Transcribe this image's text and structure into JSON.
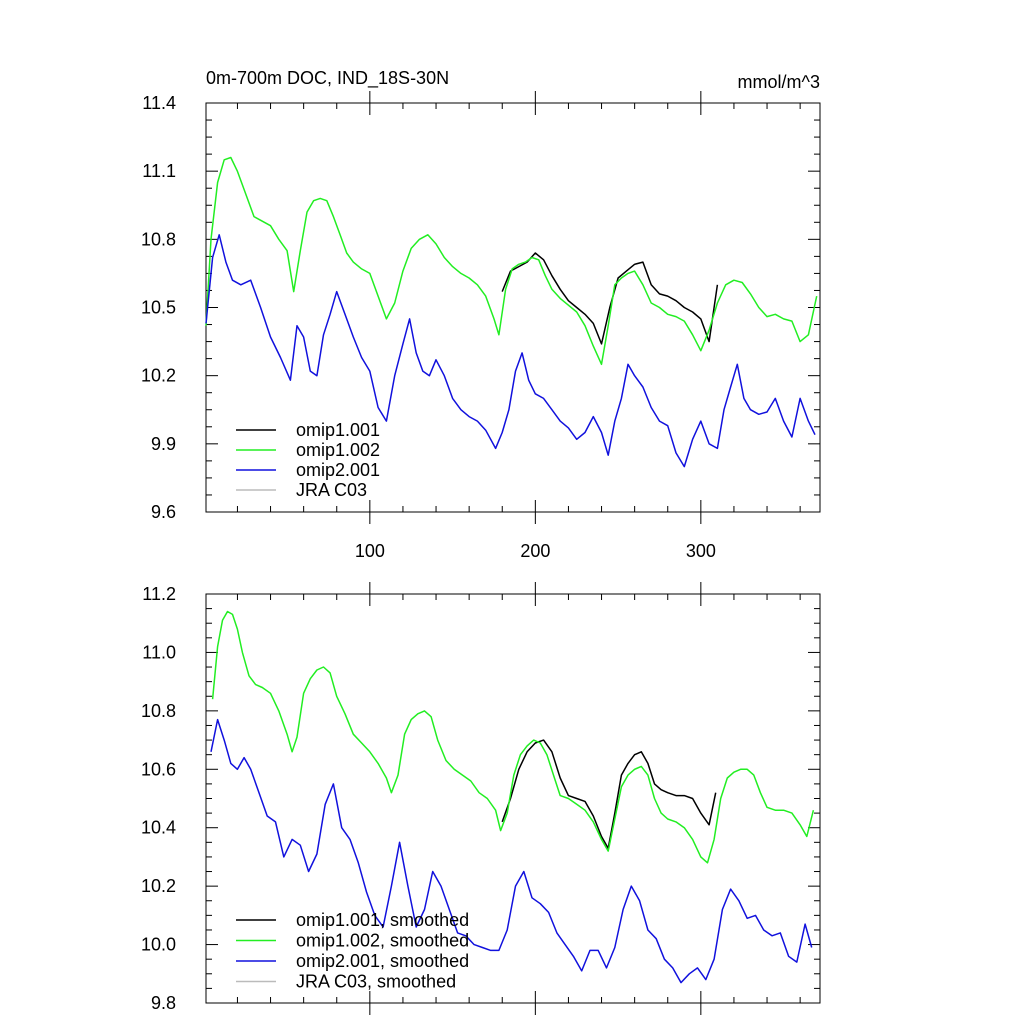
{
  "figure": {
    "title_left": "0m-700m DOC, IND_18S-30N",
    "title_right": "mmol/m^3"
  },
  "colors": {
    "omip1_001": "#000000",
    "omip1_002": "#22ee22",
    "omip2_001": "#1111dd",
    "jra_c03": "#bbbbbb"
  },
  "chart_data": [
    {
      "type": "line",
      "name": "raw",
      "xlim": [
        1,
        372
      ],
      "ylim": [
        9.6,
        11.4
      ],
      "xticks": [
        100,
        200,
        300
      ],
      "yticks": [
        9.6,
        9.9,
        10.2,
        10.5,
        10.8,
        11.1,
        11.4
      ],
      "ytick_labels": [
        "9.6",
        "9.9",
        "10.2",
        "10.5",
        "10.8",
        "11.1",
        "11.4"
      ],
      "xtick_labels": [
        "100",
        "200",
        "300"
      ],
      "legend_position": "bottom-left",
      "series": [
        {
          "name": "omip1.001",
          "color_key": "omip1_001",
          "x": [
            180,
            185,
            190,
            195,
            200,
            205,
            210,
            215,
            220,
            225,
            230,
            235,
            240,
            245,
            250,
            255,
            260,
            265,
            270,
            275,
            280,
            285,
            290,
            295,
            300,
            305,
            310
          ],
          "y": [
            10.57,
            10.66,
            10.68,
            10.7,
            10.74,
            10.71,
            10.64,
            10.58,
            10.53,
            10.5,
            10.47,
            10.43,
            10.34,
            10.5,
            10.63,
            10.66,
            10.69,
            10.7,
            10.6,
            10.56,
            10.55,
            10.53,
            10.5,
            10.48,
            10.45,
            10.35,
            10.6
          ]
        },
        {
          "name": "omip1.002",
          "color_key": "omip1_002",
          "x": [
            1,
            4,
            8,
            12,
            16,
            20,
            25,
            30,
            35,
            40,
            45,
            50,
            54,
            58,
            62,
            66,
            70,
            74,
            78,
            82,
            86,
            90,
            95,
            100,
            105,
            110,
            115,
            120,
            125,
            130,
            135,
            140,
            145,
            150,
            155,
            160,
            165,
            170,
            175,
            178,
            182,
            186,
            190,
            194,
            198,
            202,
            206,
            210,
            215,
            220,
            225,
            230,
            235,
            240,
            244,
            248,
            252,
            256,
            260,
            265,
            270,
            275,
            280,
            285,
            290,
            295,
            300,
            305,
            310,
            315,
            320,
            325,
            330,
            335,
            340,
            345,
            350,
            355,
            360,
            365,
            370
          ],
          "y": [
            10.42,
            10.8,
            11.05,
            11.15,
            11.16,
            11.1,
            11.0,
            10.9,
            10.88,
            10.86,
            10.8,
            10.75,
            10.57,
            10.75,
            10.92,
            10.97,
            10.98,
            10.97,
            10.9,
            10.82,
            10.74,
            10.7,
            10.67,
            10.65,
            10.55,
            10.45,
            10.52,
            10.66,
            10.76,
            10.8,
            10.82,
            10.78,
            10.72,
            10.68,
            10.65,
            10.63,
            10.6,
            10.55,
            10.45,
            10.38,
            10.58,
            10.67,
            10.69,
            10.7,
            10.72,
            10.71,
            10.64,
            10.58,
            10.54,
            10.51,
            10.48,
            10.42,
            10.33,
            10.25,
            10.42,
            10.6,
            10.63,
            10.65,
            10.66,
            10.6,
            10.52,
            10.5,
            10.47,
            10.46,
            10.44,
            10.38,
            10.31,
            10.4,
            10.52,
            10.6,
            10.62,
            10.61,
            10.56,
            10.5,
            10.46,
            10.47,
            10.45,
            10.44,
            10.35,
            10.38,
            10.55
          ]
        },
        {
          "name": "omip2.001",
          "color_key": "omip2_001",
          "x": [
            1,
            5,
            9,
            13,
            17,
            22,
            28,
            34,
            40,
            46,
            52,
            56,
            60,
            64,
            68,
            72,
            76,
            80,
            85,
            90,
            95,
            100,
            105,
            110,
            115,
            120,
            124,
            128,
            132,
            136,
            140,
            145,
            150,
            155,
            160,
            165,
            170,
            176,
            180,
            184,
            188,
            192,
            196,
            200,
            205,
            210,
            215,
            220,
            225,
            230,
            235,
            240,
            244,
            248,
            252,
            256,
            260,
            265,
            270,
            275,
            280,
            285,
            290,
            295,
            300,
            305,
            310,
            314,
            318,
            322,
            326,
            330,
            335,
            340,
            345,
            350,
            355,
            360,
            365,
            369
          ],
          "y": [
            10.43,
            10.72,
            10.82,
            10.7,
            10.62,
            10.6,
            10.62,
            10.5,
            10.37,
            10.28,
            10.18,
            10.42,
            10.37,
            10.22,
            10.2,
            10.38,
            10.47,
            10.57,
            10.47,
            10.37,
            10.28,
            10.22,
            10.06,
            10.0,
            10.2,
            10.34,
            10.45,
            10.3,
            10.22,
            10.2,
            10.27,
            10.2,
            10.1,
            10.05,
            10.02,
            10.0,
            9.96,
            9.88,
            9.95,
            10.05,
            10.22,
            10.3,
            10.18,
            10.12,
            10.1,
            10.05,
            10.0,
            9.97,
            9.92,
            9.95,
            10.02,
            9.95,
            9.85,
            10.0,
            10.1,
            10.25,
            10.2,
            10.15,
            10.06,
            10.0,
            9.98,
            9.86,
            9.8,
            9.92,
            10.0,
            9.9,
            9.88,
            10.05,
            10.15,
            10.25,
            10.1,
            10.05,
            10.03,
            10.04,
            10.1,
            10.0,
            9.93,
            10.1,
            10.0,
            9.94
          ]
        },
        {
          "name": "JRA C03",
          "color_key": "jra_c03",
          "x": [],
          "y": []
        }
      ]
    },
    {
      "type": "line",
      "name": "smoothed",
      "xlim": [
        1,
        372
      ],
      "ylim": [
        9.8,
        11.2
      ],
      "xticks": [
        100,
        200,
        300
      ],
      "yticks": [
        9.8,
        10.0,
        10.2,
        10.4,
        10.6,
        10.8,
        11.0,
        11.2
      ],
      "ytick_labels": [
        "9.8",
        "10.0",
        "10.2",
        "10.4",
        "10.6",
        "10.8",
        "11.0",
        "11.2"
      ],
      "legend_position": "bottom-left",
      "series": [
        {
          "name": "omip1.001, smoothed",
          "color_key": "omip1_001",
          "x": [
            180,
            185,
            190,
            195,
            200,
            205,
            210,
            215,
            220,
            225,
            230,
            235,
            240,
            244,
            248,
            252,
            256,
            260,
            264,
            268,
            272,
            276,
            280,
            285,
            290,
            295,
            300,
            305,
            309
          ],
          "y": [
            10.42,
            10.5,
            10.6,
            10.66,
            10.69,
            10.7,
            10.66,
            10.57,
            10.51,
            10.5,
            10.49,
            10.44,
            10.37,
            10.33,
            10.45,
            10.58,
            10.62,
            10.65,
            10.66,
            10.62,
            10.55,
            10.53,
            10.52,
            10.51,
            10.51,
            10.5,
            10.45,
            10.41,
            10.52
          ]
        },
        {
          "name": "omip1.002, smoothed",
          "color_key": "omip1_002",
          "x": [
            5,
            8,
            11,
            14,
            17,
            20,
            23,
            27,
            31,
            35,
            40,
            45,
            50,
            53,
            56,
            60,
            64,
            68,
            72,
            76,
            80,
            85,
            90,
            95,
            100,
            105,
            110,
            113,
            117,
            121,
            125,
            129,
            133,
            137,
            141,
            146,
            151,
            156,
            161,
            166,
            171,
            176,
            179,
            183,
            187,
            191,
            195,
            199,
            203,
            207,
            211,
            215,
            220,
            225,
            230,
            235,
            240,
            244,
            248,
            252,
            256,
            260,
            264,
            268,
            272,
            276,
            280,
            285,
            290,
            295,
            300,
            304,
            308,
            312,
            316,
            320,
            324,
            328,
            332,
            336,
            340,
            345,
            350,
            355,
            360,
            364,
            368
          ],
          "y": [
            10.84,
            11.02,
            11.11,
            11.14,
            11.13,
            11.08,
            11.0,
            10.92,
            10.89,
            10.88,
            10.86,
            10.8,
            10.72,
            10.66,
            10.71,
            10.86,
            10.91,
            10.94,
            10.95,
            10.93,
            10.85,
            10.79,
            10.72,
            10.69,
            10.66,
            10.62,
            10.57,
            10.52,
            10.58,
            10.72,
            10.77,
            10.79,
            10.8,
            10.78,
            10.7,
            10.63,
            10.6,
            10.58,
            10.56,
            10.52,
            10.5,
            10.46,
            10.39,
            10.45,
            10.58,
            10.65,
            10.68,
            10.7,
            10.69,
            10.65,
            10.58,
            10.51,
            10.5,
            10.48,
            10.46,
            10.42,
            10.36,
            10.32,
            10.43,
            10.54,
            10.58,
            10.6,
            10.61,
            10.58,
            10.5,
            10.45,
            10.43,
            10.42,
            10.4,
            10.36,
            10.3,
            10.28,
            10.36,
            10.5,
            10.57,
            10.59,
            10.6,
            10.6,
            10.58,
            10.52,
            10.47,
            10.46,
            10.46,
            10.45,
            10.41,
            10.37,
            10.46
          ]
        },
        {
          "name": "omip2.001, smoothed",
          "color_key": "omip2_001",
          "x": [
            4,
            8,
            12,
            16,
            20,
            24,
            28,
            33,
            38,
            43,
            48,
            53,
            58,
            63,
            68,
            73,
            78,
            83,
            88,
            93,
            98,
            103,
            108,
            113,
            118,
            123,
            128,
            133,
            138,
            143,
            148,
            153,
            158,
            163,
            168,
            173,
            178,
            183,
            188,
            193,
            198,
            203,
            208,
            213,
            218,
            223,
            228,
            233,
            238,
            243,
            248,
            253,
            258,
            263,
            268,
            273,
            278,
            283,
            288,
            293,
            298,
            303,
            308,
            313,
            318,
            323,
            328,
            333,
            338,
            343,
            348,
            353,
            358,
            363,
            367
          ],
          "y": [
            10.66,
            10.77,
            10.7,
            10.62,
            10.6,
            10.64,
            10.6,
            10.52,
            10.44,
            10.42,
            10.3,
            10.36,
            10.34,
            10.25,
            10.31,
            10.48,
            10.55,
            10.4,
            10.36,
            10.28,
            10.18,
            10.1,
            10.06,
            10.2,
            10.35,
            10.2,
            10.06,
            10.12,
            10.25,
            10.2,
            10.12,
            10.04,
            10.03,
            10.0,
            9.99,
            9.98,
            9.98,
            10.05,
            10.2,
            10.25,
            10.16,
            10.14,
            10.11,
            10.04,
            10.0,
            9.96,
            9.91,
            9.98,
            9.98,
            9.92,
            9.99,
            10.12,
            10.2,
            10.15,
            10.05,
            10.02,
            9.95,
            9.92,
            9.87,
            9.9,
            9.92,
            9.88,
            9.95,
            10.12,
            10.19,
            10.15,
            10.09,
            10.1,
            10.05,
            10.03,
            10.04,
            9.96,
            9.94,
            10.07,
            9.99
          ]
        },
        {
          "name": "JRA C03, smoothed",
          "color_key": "jra_c03",
          "x": [],
          "y": []
        }
      ]
    }
  ]
}
